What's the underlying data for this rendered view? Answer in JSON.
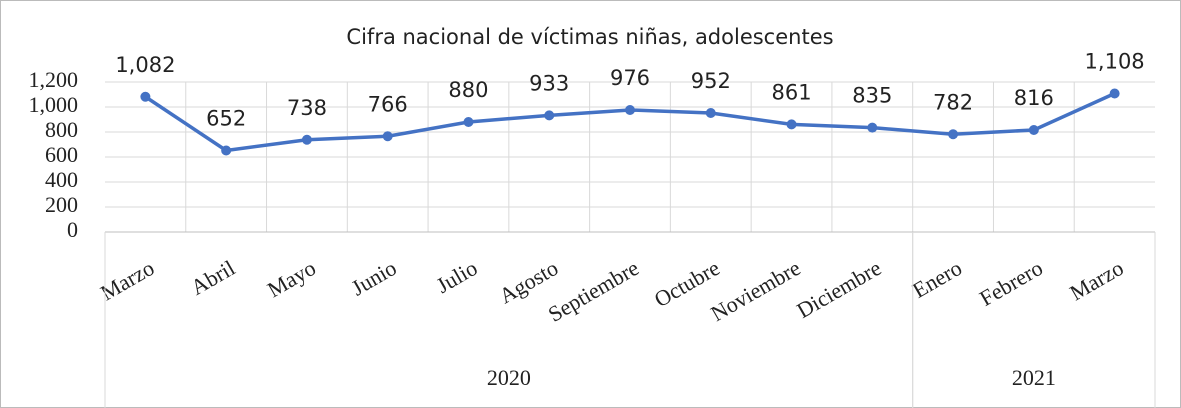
{
  "chart_data": {
    "type": "line",
    "title": "Cifra nacional de víctimas niñas, adolescentes",
    "category_groups": [
      {
        "label": "2020",
        "categories": [
          "Marzo",
          "Abril",
          "Mayo",
          "Junio",
          "Julio",
          "Agosto",
          "Septiembre",
          "Octubre",
          "Noviembre",
          "Diciembre"
        ]
      },
      {
        "label": "2021",
        "categories": [
          "Enero",
          "Febrero",
          "Marzo"
        ]
      }
    ],
    "values": [
      1082,
      652,
      738,
      766,
      880,
      933,
      976,
      952,
      861,
      835,
      782,
      816,
      1108
    ],
    "value_labels": [
      "1,082",
      "652",
      "738",
      "766",
      "880",
      "933",
      "976",
      "952",
      "861",
      "835",
      "782",
      "816",
      "1,108"
    ],
    "color": "#4472c4",
    "ylim": [
      0,
      1200
    ],
    "yticks": [
      0,
      200,
      400,
      600,
      800,
      {
        "value": 1000,
        "label": "1,000"
      },
      {
        "value": 1200,
        "label": "1,200"
      }
    ],
    "grid": true
  }
}
